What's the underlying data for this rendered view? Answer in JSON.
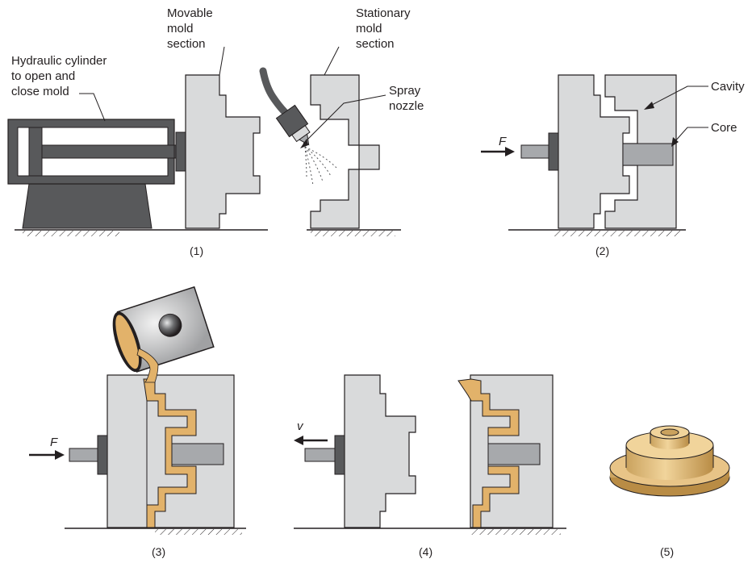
{
  "panel1": {
    "caption": "(1)",
    "hydraulic_label": [
      "Hydraulic cylinder",
      "to open and",
      "close mold"
    ],
    "movable_label": [
      "Movable",
      "mold",
      "section"
    ],
    "stationary_label": [
      "Stationary",
      "mold",
      "section"
    ],
    "spray_label": [
      "Spray",
      "nozzle"
    ]
  },
  "panel2": {
    "caption": "(2)",
    "force_label": "F",
    "cavity_label": "Cavity",
    "core_label": "Core"
  },
  "panel3": {
    "caption": "(3)",
    "force_label": "F"
  },
  "panel4": {
    "caption": "(4)",
    "velocity_label": "v"
  },
  "panel5": {
    "caption": "(5)"
  },
  "colors": {
    "mold_fill": "#d9dadb",
    "core_fill": "#a7a9ac",
    "metal_fill": "#e2b26a",
    "outline": "#231f20",
    "dark_metal": "#58595b"
  }
}
